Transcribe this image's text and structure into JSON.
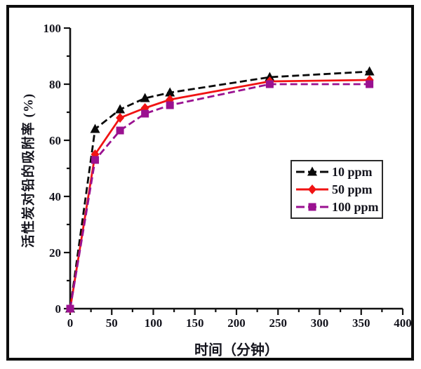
{
  "figure": {
    "background": "#ffffff",
    "frame_color": "#0d0d0d",
    "text_color": "#14141d",
    "axis_color": "#111111"
  },
  "chart_data": {
    "type": "line",
    "title": "",
    "xlabel": "时间（分钟）",
    "ylabel": "活性炭对铅的吸附率 (%)",
    "xlim": [
      0,
      400
    ],
    "ylim": [
      0,
      100
    ],
    "x_ticks": [
      0,
      50,
      100,
      150,
      200,
      250,
      300,
      350,
      400
    ],
    "x_minor_ticks": [
      25,
      75,
      125,
      175,
      225,
      275,
      325,
      375
    ],
    "y_ticks": [
      0,
      20,
      40,
      60,
      80,
      100
    ],
    "y_minor_ticks": [
      10,
      30,
      50,
      70,
      90
    ],
    "grid": false,
    "legend_position": "inside-right",
    "x": [
      0,
      30,
      60,
      90,
      120,
      240,
      360
    ],
    "series": [
      {
        "name": "10 ppm",
        "color": "#0a0a0a",
        "marker": "triangle",
        "line_style": "dashed",
        "values": [
          0,
          64,
          71,
          75,
          77,
          82.5,
          84.5
        ]
      },
      {
        "name": "50 ppm",
        "color": "#f01313",
        "marker": "diamond",
        "line_style": "solid",
        "values": [
          0,
          55,
          68,
          71.5,
          74.5,
          81,
          81.5
        ]
      },
      {
        "name": "100 ppm",
        "color": "#9a1190",
        "marker": "square",
        "line_style": "dashed",
        "values": [
          0,
          53,
          63.5,
          69.5,
          72.5,
          80,
          80
        ]
      }
    ]
  }
}
